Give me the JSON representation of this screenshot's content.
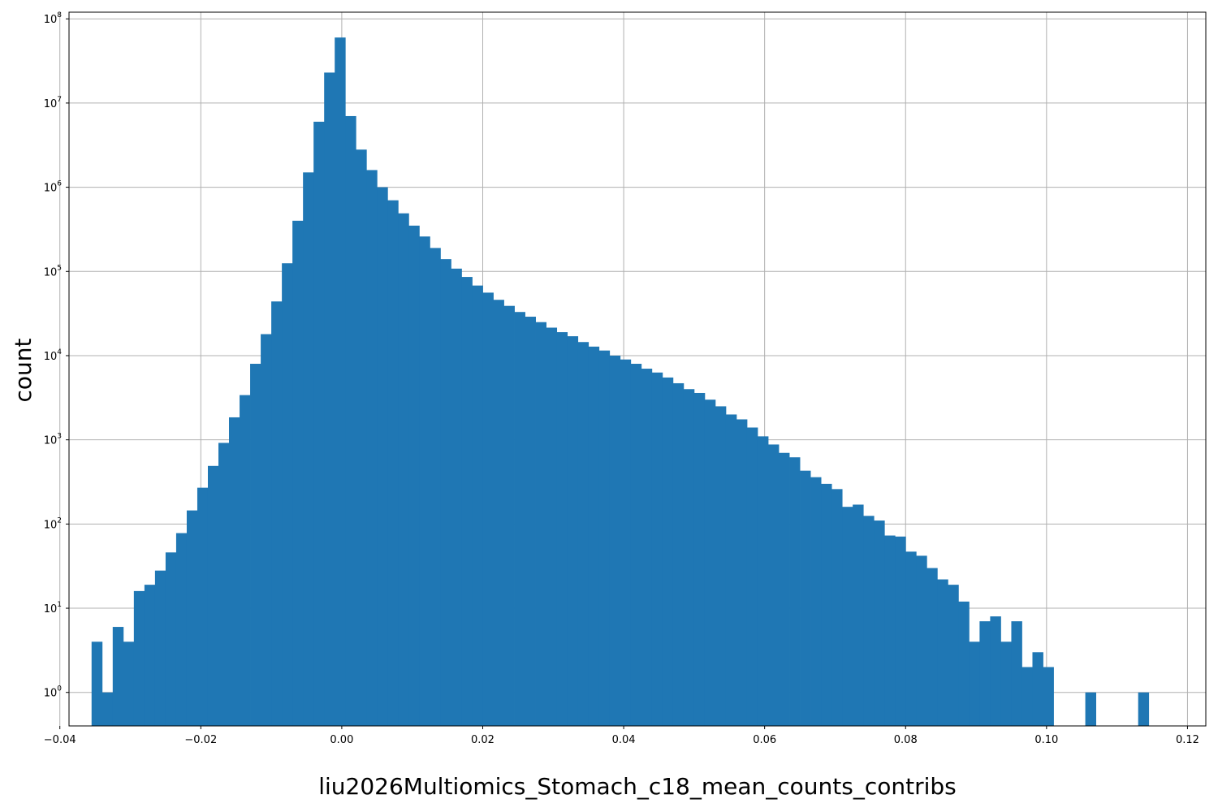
{
  "chart_data": {
    "type": "bar",
    "subtype": "histogram",
    "title": "",
    "xlabel": "liu2026Multiomics_Stomach_c18_mean_counts_contribs",
    "ylabel": "count",
    "yscale": "log",
    "ylim": [
      0.4,
      120000000
    ],
    "xlim": [
      -0.0387,
      0.1226
    ],
    "grid": true,
    "bar_color": "#1f77b4",
    "bin_width": 0.0015,
    "x_start": -0.0355,
    "values": [
      4,
      1,
      6,
      4,
      16,
      19,
      28,
      46,
      78,
      145,
      270,
      490,
      920,
      1850,
      3400,
      8000,
      18000,
      44000,
      125000,
      400000,
      1500000,
      6000000,
      23000000,
      60000000,
      7000000,
      2800000,
      1600000,
      1000000,
      700000,
      490000,
      350000,
      260000,
      190000,
      140000,
      108000,
      86000,
      68000,
      56000,
      46000,
      39000,
      33000,
      29000,
      25000,
      21500,
      19000,
      17000,
      14500,
      12800,
      11500,
      10000,
      9000,
      8000,
      7000,
      6300,
      5500,
      4700,
      4000,
      3600,
      3000,
      2500,
      2000,
      1750,
      1400,
      1100,
      880,
      700,
      620,
      430,
      360,
      300,
      260,
      160,
      170,
      125,
      110,
      73,
      71,
      47,
      42,
      30,
      22,
      19,
      12,
      4,
      7,
      8,
      4,
      7,
      2,
      3,
      2,
      0,
      0,
      0,
      1,
      0,
      0,
      0,
      0,
      1
    ],
    "x_ticks": [
      {
        "value": -0.04,
        "label": "−0.04"
      },
      {
        "value": -0.02,
        "label": "−0.02"
      },
      {
        "value": 0.0,
        "label": "0.00"
      },
      {
        "value": 0.02,
        "label": "0.02"
      },
      {
        "value": 0.04,
        "label": "0.04"
      },
      {
        "value": 0.06,
        "label": "0.06"
      },
      {
        "value": 0.08,
        "label": "0.08"
      },
      {
        "value": 0.1,
        "label": "0.10"
      },
      {
        "value": 0.12,
        "label": "0.12"
      }
    ],
    "y_ticks": [
      {
        "value": 1,
        "base": "10",
        "exp": "0"
      },
      {
        "value": 10,
        "base": "10",
        "exp": "1"
      },
      {
        "value": 100,
        "base": "10",
        "exp": "2"
      },
      {
        "value": 1000,
        "base": "10",
        "exp": "3"
      },
      {
        "value": 10000,
        "base": "10",
        "exp": "4"
      },
      {
        "value": 100000,
        "base": "10",
        "exp": "5"
      },
      {
        "value": 1000000,
        "base": "10",
        "exp": "6"
      },
      {
        "value": 10000000,
        "base": "10",
        "exp": "7"
      },
      {
        "value": 100000000,
        "base": "10",
        "exp": "8"
      }
    ]
  }
}
